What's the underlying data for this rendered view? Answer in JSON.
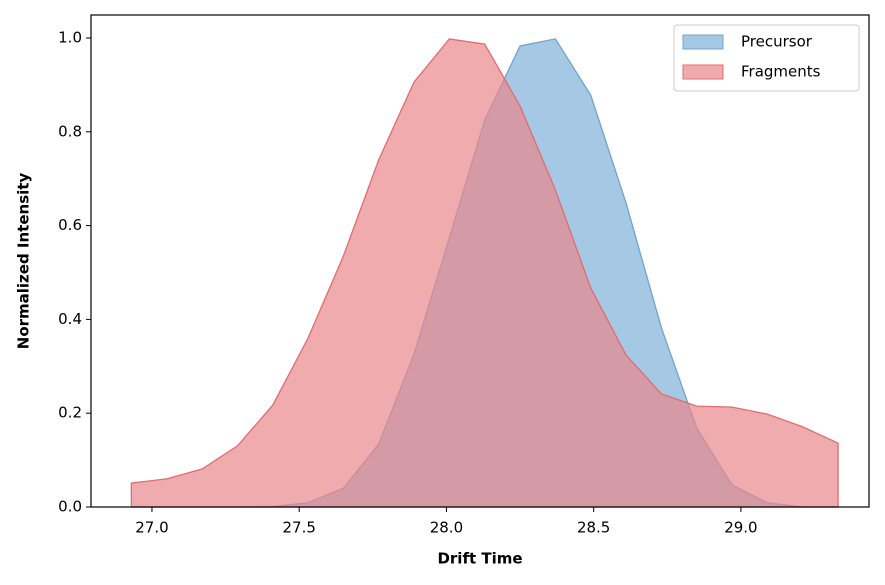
{
  "chart_data": {
    "type": "area",
    "xlabel": "Drift Time",
    "ylabel": "Normalized Intensity",
    "x": [
      26.93,
      27.05,
      27.17,
      27.29,
      27.41,
      27.53,
      27.65,
      27.77,
      27.89,
      28.01,
      28.13,
      28.25,
      28.37,
      28.49,
      28.61,
      28.73,
      28.85,
      28.97,
      29.09,
      29.21,
      29.33
    ],
    "series": [
      {
        "name": "Precursor",
        "color": "#7fb2d8",
        "edgecolor": "#6fa3cf",
        "values": [
          0,
          0,
          0,
          0,
          0.001,
          0.009,
          0.04,
          0.134,
          0.326,
          0.574,
          0.825,
          0.983,
          0.998,
          0.878,
          0.648,
          0.382,
          0.168,
          0.047,
          0.009,
          0,
          0
        ]
      },
      {
        "name": "Fragments",
        "color": "#e8888c",
        "edgecolor": "#e06c70",
        "values": [
          0.051,
          0.06,
          0.081,
          0.13,
          0.217,
          0.36,
          0.535,
          0.74,
          0.906,
          0.998,
          0.987,
          0.855,
          0.676,
          0.467,
          0.324,
          0.241,
          0.215,
          0.213,
          0.198,
          0.171,
          0.136
        ]
      }
    ],
    "xlim": [
      26.793,
      29.435
    ],
    "ylim": [
      0,
      1.049
    ],
    "xticks": [
      {
        "value": 27,
        "label": "27.0"
      },
      {
        "value": 27.5,
        "label": "27.5"
      },
      {
        "value": 28,
        "label": "28.0"
      },
      {
        "value": 28.5,
        "label": "28.5"
      },
      {
        "value": 29,
        "label": "29.0"
      }
    ],
    "yticks": [
      {
        "value": 0,
        "label": "0.0"
      },
      {
        "value": 0.2,
        "label": "0.2"
      },
      {
        "value": 0.4,
        "label": "0.4"
      },
      {
        "value": 0.6,
        "label": "0.6"
      },
      {
        "value": 0.8,
        "label": "0.8"
      },
      {
        "value": 1,
        "label": "1.0"
      }
    ],
    "legend": "upper right",
    "alpha": 0.7
  }
}
